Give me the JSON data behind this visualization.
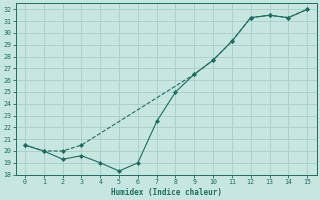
{
  "xlabel": "Humidex (Indice chaleur)",
  "bg_color": "#c8e6e0",
  "grid_color": "#a8ccc8",
  "line_color": "#1a6e62",
  "x_line_dip": [
    0,
    1,
    2,
    3,
    4,
    5,
    6,
    7,
    8,
    9,
    10,
    11,
    12,
    13,
    14,
    15
  ],
  "y_line_dip": [
    20.5,
    20.0,
    19.3,
    19.6,
    19.0,
    18.3,
    19.0,
    22.5,
    25.0,
    26.5,
    27.7,
    29.3,
    31.3,
    31.5,
    31.3,
    32.0
  ],
  "x_line_upper": [
    0,
    1,
    2,
    3,
    9,
    10,
    11,
    12,
    13,
    14,
    15
  ],
  "y_line_upper": [
    20.5,
    20.0,
    20.0,
    20.5,
    26.5,
    27.7,
    29.3,
    31.3,
    31.5,
    31.3,
    32.0
  ],
  "xlim": [
    -0.5,
    15.5
  ],
  "ylim": [
    18,
    32.5
  ],
  "yticks": [
    18,
    19,
    20,
    21,
    22,
    23,
    24,
    25,
    26,
    27,
    28,
    29,
    30,
    31,
    32
  ],
  "xticks": [
    0,
    1,
    2,
    3,
    4,
    5,
    6,
    7,
    8,
    9,
    10,
    11,
    12,
    13,
    14,
    15
  ]
}
